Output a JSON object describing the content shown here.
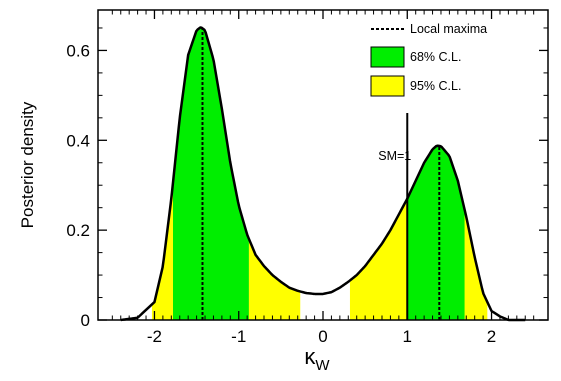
{
  "chart_data": {
    "type": "area",
    "title": "",
    "xlabel": "κ",
    "xlabel_sub": "W",
    "ylabel": "Posterior density",
    "xlim": [
      -2.67,
      2.67
    ],
    "ylim": [
      0,
      0.69
    ],
    "grid": false,
    "legend_position": "top-right",
    "x_ticks": [
      -2,
      -1,
      0,
      1,
      2
    ],
    "x_tick_labels": [
      "-2",
      "-1",
      "0",
      "1",
      "2"
    ],
    "y_ticks": [
      0,
      0.2,
      0.4,
      0.6
    ],
    "y_tick_labels": [
      "0",
      "0.2",
      "0.4",
      "0.6"
    ],
    "curve": {
      "x": [
        -2.4,
        -2.2,
        -2.0,
        -1.9,
        -1.8,
        -1.7,
        -1.6,
        -1.5,
        -1.45,
        -1.4,
        -1.3,
        -1.2,
        -1.1,
        -1.0,
        -0.9,
        -0.8,
        -0.7,
        -0.6,
        -0.5,
        -0.4,
        -0.3,
        -0.2,
        -0.1,
        0.0,
        0.1,
        0.2,
        0.3,
        0.4,
        0.5,
        0.6,
        0.7,
        0.8,
        0.9,
        1.0,
        1.1,
        1.2,
        1.3,
        1.35,
        1.4,
        1.5,
        1.6,
        1.7,
        1.8,
        1.9,
        2.0,
        2.1,
        2.2,
        2.4
      ],
      "y": [
        0.0,
        0.005,
        0.04,
        0.12,
        0.27,
        0.45,
        0.59,
        0.645,
        0.652,
        0.645,
        0.58,
        0.47,
        0.35,
        0.255,
        0.19,
        0.145,
        0.12,
        0.1,
        0.085,
        0.072,
        0.065,
        0.06,
        0.058,
        0.058,
        0.062,
        0.072,
        0.085,
        0.1,
        0.12,
        0.145,
        0.17,
        0.2,
        0.235,
        0.27,
        0.31,
        0.35,
        0.38,
        0.388,
        0.387,
        0.365,
        0.31,
        0.23,
        0.14,
        0.06,
        0.02,
        0.008,
        0.0,
        0.0
      ]
    },
    "regions_68": [
      [
        -1.78,
        -0.88
      ],
      [
        1.0,
        1.68
      ]
    ],
    "regions_95": [
      [
        -2.03,
        -0.27
      ],
      [
        0.32,
        1.95
      ]
    ],
    "local_maxima_x": [
      -1.43,
      1.38
    ],
    "sm_line_x": 1.0,
    "sm_label": "SM=1",
    "legend": [
      {
        "label": "Local maxima",
        "kind": "dotted-line"
      },
      {
        "label": "68% C.L.",
        "kind": "swatch",
        "color": "#00ee00"
      },
      {
        "label": "95% C.L.",
        "kind": "swatch",
        "color": "#ffff00"
      }
    ],
    "colors": {
      "cl68": "#00ee00",
      "cl95": "#ffff00",
      "line": "#000000"
    }
  }
}
